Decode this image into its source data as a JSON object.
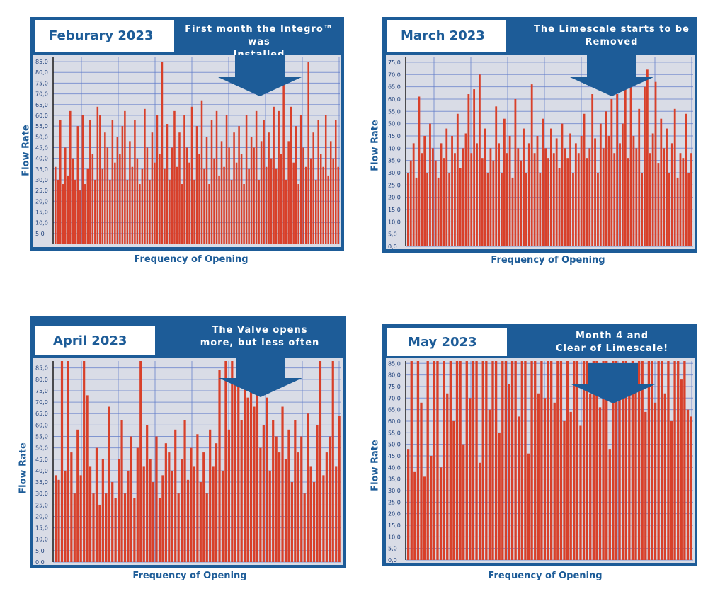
{
  "colors": {
    "frame": "#1d5c98",
    "bar": "#d8402a",
    "plot_bg": "#d9dce6",
    "grid": "#5b78c8"
  },
  "chart_data": [
    {
      "type": "bar",
      "title": "Feburary 2023",
      "callout": "First month the Integro™ was\nInstalled",
      "xlabel": "Frequency of Opening",
      "ylabel": "Flow Rate",
      "ylim": [
        0,
        87
      ],
      "yticks": [
        "5,0",
        "10,0",
        "15,0",
        "20,0",
        "25,0",
        "30,0",
        "35,0",
        "40,0",
        "45,0",
        "50,0",
        "55,0",
        "60,0",
        "65,0",
        "70,0",
        "75,0",
        "80,0",
        "85,0"
      ],
      "values": [
        36,
        30,
        58,
        28,
        45,
        32,
        62,
        40,
        30,
        55,
        25,
        60,
        28,
        35,
        58,
        42,
        30,
        64,
        60,
        35,
        52,
        45,
        30,
        58,
        38,
        50,
        42,
        55,
        62,
        30,
        48,
        36,
        58,
        40,
        28,
        35,
        63,
        45,
        30,
        52,
        38,
        60,
        42,
        85,
        35,
        56,
        30,
        45,
        62,
        36,
        52,
        28,
        60,
        45,
        38,
        64,
        30,
        55,
        42,
        67,
        35,
        50,
        28,
        58,
        40,
        62,
        32,
        48,
        36,
        60,
        45,
        30,
        52,
        38,
        55,
        42,
        28,
        60,
        35,
        50,
        45,
        62,
        30,
        48,
        58,
        36,
        52,
        40,
        64,
        35,
        62,
        42,
        80,
        30,
        48,
        64,
        38,
        55,
        28,
        60,
        45,
        36,
        85,
        40,
        52,
        30,
        58,
        42,
        36,
        60,
        32,
        48,
        40,
        58,
        36
      ]
    },
    {
      "type": "bar",
      "title": "March 2023",
      "callout": "The Limescale starts to be\nRemoved",
      "xlabel": "Frequency of Opening",
      "ylabel": "Flow Rate",
      "ylim": [
        0,
        77
      ],
      "yticks": [
        "0,0",
        "5,0",
        "10,0",
        "15,0",
        "20,0",
        "25,0",
        "30,0",
        "35,0",
        "40,0",
        "45,0",
        "50,0",
        "55,0",
        "60,0",
        "65,0",
        "70,0",
        "75,0"
      ],
      "values": [
        30,
        35,
        42,
        28,
        61,
        38,
        45,
        30,
        50,
        40,
        35,
        28,
        42,
        36,
        48,
        30,
        45,
        38,
        54,
        32,
        40,
        46,
        62,
        38,
        64,
        42,
        70,
        36,
        48,
        30,
        40,
        35,
        57,
        42,
        30,
        52,
        38,
        45,
        28,
        60,
        40,
        35,
        48,
        30,
        42,
        66,
        38,
        45,
        30,
        52,
        40,
        36,
        48,
        38,
        44,
        32,
        50,
        40,
        36,
        46,
        30,
        42,
        38,
        45,
        54,
        36,
        40,
        62,
        44,
        30,
        50,
        40,
        55,
        45,
        60,
        38,
        62,
        42,
        50,
        64,
        36,
        68,
        45,
        40,
        56,
        30,
        65,
        72,
        38,
        46,
        67,
        34,
        52,
        40,
        48,
        30,
        42,
        56,
        28,
        38,
        36,
        54,
        30,
        38
      ]
    },
    {
      "type": "bar",
      "title": "April 2023",
      "callout": "The Valve opens\nmore, but less often",
      "xlabel": "Frequency of Opening",
      "ylabel": "Flow Rate",
      "ylim": [
        0,
        88
      ],
      "yticks": [
        "0,0",
        "5,0",
        "10,0",
        "15,0",
        "20,0",
        "25,0",
        "30,0",
        "35,0",
        "40,0",
        "45,0",
        "50,0",
        "55,0",
        "60,0",
        "65,0",
        "70,0",
        "75,0",
        "80,0",
        "85,0"
      ],
      "values": [
        38,
        36,
        88,
        40,
        88,
        48,
        30,
        58,
        38,
        88,
        73,
        42,
        30,
        50,
        25,
        45,
        30,
        68,
        35,
        28,
        45,
        62,
        30,
        40,
        55,
        28,
        50,
        88,
        42,
        60,
        45,
        35,
        55,
        28,
        38,
        52,
        48,
        40,
        58,
        30,
        45,
        62,
        36,
        50,
        42,
        56,
        35,
        48,
        30,
        58,
        42,
        52,
        84,
        40,
        88,
        58,
        88,
        78,
        86,
        62,
        80,
        72,
        88,
        68,
        75,
        50,
        60,
        72,
        40,
        62,
        55,
        48,
        68,
        45,
        58,
        35,
        62,
        48,
        55,
        30,
        65,
        42,
        35,
        60,
        88,
        38,
        48,
        55,
        88,
        42,
        64
      ]
    },
    {
      "type": "bar",
      "title": "May 2023",
      "callout": "Month 4 and\nClear of Limescale!",
      "xlabel": "Frequency of Opening",
      "ylabel": "Flow Rate",
      "ylim": [
        0,
        86
      ],
      "yticks": [
        "0,0",
        "5,0",
        "10,0",
        "15,0",
        "20,0",
        "25,0",
        "30,0",
        "35,0",
        "40,0",
        "45,0",
        "50,0",
        "55,0",
        "60,0",
        "65,0",
        "70,0",
        "75,0",
        "80,0",
        "85,0"
      ],
      "values": [
        48,
        86,
        38,
        86,
        68,
        36,
        86,
        45,
        86,
        86,
        40,
        86,
        72,
        86,
        60,
        86,
        86,
        50,
        86,
        70,
        86,
        86,
        42,
        86,
        86,
        65,
        86,
        86,
        55,
        86,
        86,
        76,
        86,
        86,
        62,
        86,
        86,
        46,
        86,
        86,
        72,
        86,
        70,
        86,
        86,
        68,
        86,
        86,
        60,
        86,
        64,
        86,
        86,
        58,
        86,
        86,
        72,
        86,
        86,
        66,
        86,
        86,
        48,
        86,
        86,
        70,
        86,
        86,
        75,
        86,
        80,
        86,
        86,
        64,
        86,
        86,
        68,
        86,
        86,
        72,
        86,
        60,
        86,
        86,
        78,
        86,
        65,
        62
      ]
    }
  ]
}
